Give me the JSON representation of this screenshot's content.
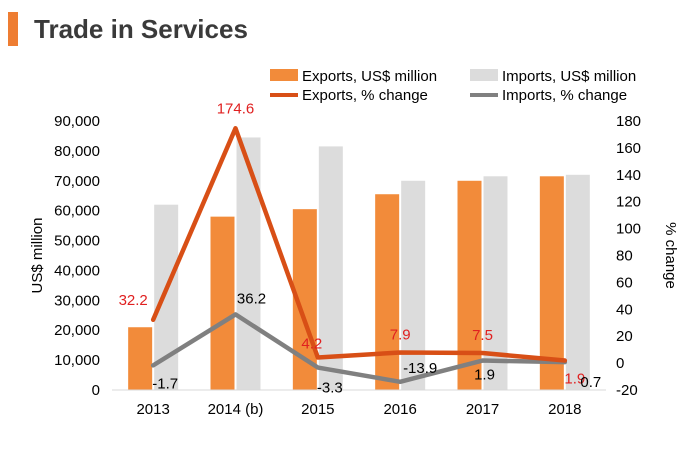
{
  "page_title": "Trade in Services",
  "colors": {
    "accent": "#ee7d32",
    "exports_bar": "#f28b3a",
    "imports_bar": "#dcdcdc",
    "exports_line": "#d84f16",
    "imports_line": "#808080",
    "exports_label": "#e02020",
    "imports_label": "#000000"
  },
  "chart_data": {
    "type": "bar+line",
    "title": "Trade in Services",
    "categories": [
      "2013",
      "2014 (b)",
      "2015",
      "2016",
      "2017",
      "2018"
    ],
    "ylabel": "US$ million",
    "y2label": "% change",
    "ylim": [
      0,
      90000
    ],
    "y2lim": [
      -20,
      180
    ],
    "y_ticks": [
      "0",
      "10,000",
      "20,000",
      "30,000",
      "40,000",
      "50,000",
      "60,000",
      "70,000",
      "80,000",
      "90,000"
    ],
    "y2_ticks": [
      "-20",
      "0",
      "20",
      "40",
      "60",
      "80",
      "100",
      "120",
      "140",
      "160",
      "180"
    ],
    "legend": [
      {
        "key": "exports_bar",
        "label": "Exports, US$ million"
      },
      {
        "key": "imports_bar",
        "label": "Imports, US$ million"
      },
      {
        "key": "exports_line",
        "label": "Exports, % change"
      },
      {
        "key": "imports_line",
        "label": "Imports, % change"
      }
    ],
    "series": [
      {
        "name": "Exports, US$ million",
        "type": "bar",
        "axis": "left",
        "values": [
          21000,
          58000,
          60500,
          65500,
          70000,
          71500
        ]
      },
      {
        "name": "Imports, US$ million",
        "type": "bar",
        "axis": "left",
        "values": [
          62000,
          84500,
          81500,
          70000,
          71500,
          72000
        ]
      },
      {
        "name": "Exports, % change",
        "type": "line",
        "axis": "right",
        "values": [
          32.2,
          174.6,
          4.2,
          7.9,
          7.5,
          1.9
        ],
        "labels": [
          "32.2",
          "174.6",
          "4.2",
          "7.9",
          "7.5",
          "1.9"
        ]
      },
      {
        "name": "Imports, % change",
        "type": "line",
        "axis": "right",
        "values": [
          -1.7,
          36.2,
          -3.3,
          -13.9,
          1.9,
          0.7
        ],
        "labels": [
          "-1.7",
          "36.2",
          "-3.3",
          "-13.9",
          "1.9",
          "0.7"
        ]
      }
    ]
  }
}
